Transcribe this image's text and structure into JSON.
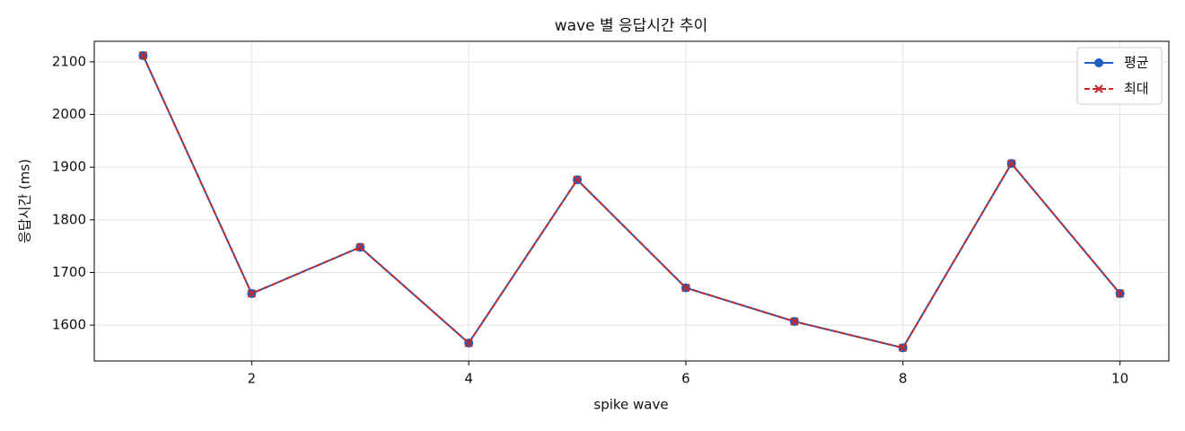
{
  "chart_data": {
    "type": "line",
    "title": "wave 별 응답시간 추이",
    "x_label": "spike wave",
    "y_label": "응답시간 (ms)",
    "x": [
      1,
      2,
      3,
      4,
      5,
      6,
      7,
      8,
      9,
      10
    ],
    "series": [
      {
        "name": "평균",
        "color": "#1f5fbf",
        "linestyle": "solid",
        "marker": "o",
        "values": [
          2112,
          1660,
          1748,
          1566,
          1876,
          1671,
          1607,
          1557,
          1907,
          1660
        ]
      },
      {
        "name": "최대",
        "color": "#c62828",
        "linestyle": "dashed",
        "marker": "x",
        "values": [
          2112,
          1660,
          1748,
          1566,
          1876,
          1671,
          1607,
          1557,
          1907,
          1660
        ]
      }
    ],
    "xlim": [
      0.55,
      10.45
    ],
    "xticks": [
      2,
      4,
      6,
      8,
      10
    ],
    "ylim": [
      1532,
      2139
    ],
    "yticks": [
      1600,
      1700,
      1800,
      1900,
      2000,
      2100
    ],
    "grid": true,
    "legend": "upper right"
  }
}
